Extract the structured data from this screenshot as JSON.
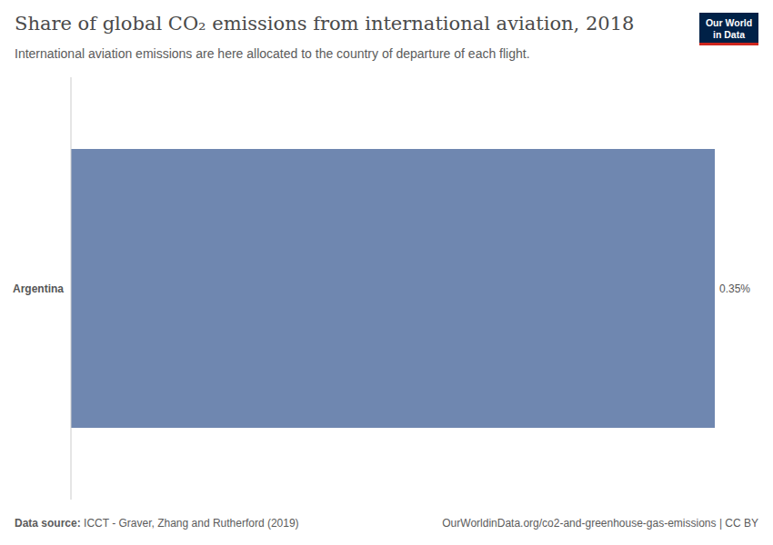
{
  "chart_data": {
    "type": "bar",
    "title": "Share of global CO₂ emissions from international aviation, 2018",
    "subtitle": "International aviation emissions are here allocated to the country of departure of each flight.",
    "categories": [
      "Argentina"
    ],
    "values": [
      0.35
    ],
    "value_labels": [
      "0.35%"
    ],
    "data_labels": true,
    "color": "#6f87b0",
    "orientation": "horizontal",
    "xlim": [
      0,
      0.35
    ],
    "tick_labels": "y",
    "grid": false,
    "source_label": "Data source:",
    "source": "ICCT - Graver, Zhang and Rutherford (2019)",
    "url": "OurWorldinData.org/co2-and-greenhouse-gas-emissions | CC BY",
    "logo": [
      "Our World",
      "in Data"
    ]
  }
}
